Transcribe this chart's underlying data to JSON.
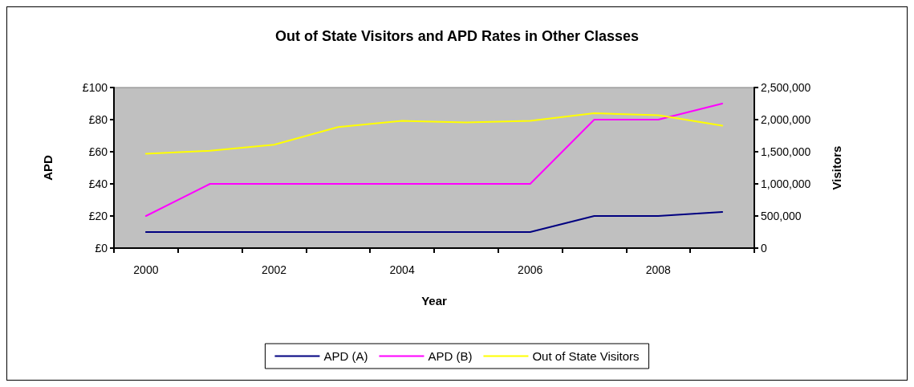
{
  "chart_data": {
    "type": "line",
    "title": "Out of State Visitors and APD Rates in Other Classes",
    "xlabel": "Year",
    "ylabel": "APD",
    "y2label": "Visitors",
    "categories": [
      "2000",
      null,
      "2002",
      null,
      "2004",
      null,
      "2006",
      null,
      "2008",
      null
    ],
    "series": [
      {
        "name": "APD (A)",
        "color": "#000080",
        "values": [
          10,
          10,
          10,
          10,
          10,
          10,
          10,
          20,
          20,
          22.5
        ]
      },
      {
        "name": "APD (B)",
        "color": "#ff00ff",
        "values": [
          20,
          40,
          40,
          40,
          40,
          40,
          40,
          80,
          80,
          90
        ]
      },
      {
        "name": "Out of State Visitors",
        "color": "#ffff00",
        "axis": "y2",
        "values": [
          1470000,
          1515000,
          1610000,
          1885000,
          1980000,
          1955000,
          1980000,
          2100000,
          2070000,
          1905000
        ]
      }
    ],
    "ylim": [
      0,
      100
    ],
    "yticks": [
      {
        "value": 0,
        "label": "£0"
      },
      {
        "value": 20,
        "label": "£20"
      },
      {
        "value": 40,
        "label": "£40"
      },
      {
        "value": 60,
        "label": "£60"
      },
      {
        "value": 80,
        "label": "£80"
      },
      {
        "value": 100,
        "label": "£100"
      }
    ],
    "y2lim": [
      0,
      2500000
    ],
    "y2ticks": [
      {
        "value": 0,
        "label": "0"
      },
      {
        "value": 500000,
        "label": "500,000"
      },
      {
        "value": 1000000,
        "label": "1,000,000"
      },
      {
        "value": 1500000,
        "label": "1,500,000"
      },
      {
        "value": 2000000,
        "label": "2,000,000"
      },
      {
        "value": 2500000,
        "label": "2,500,000"
      }
    ],
    "grid": false,
    "legend": "bottom",
    "marker": "none",
    "line_style": "solid"
  }
}
